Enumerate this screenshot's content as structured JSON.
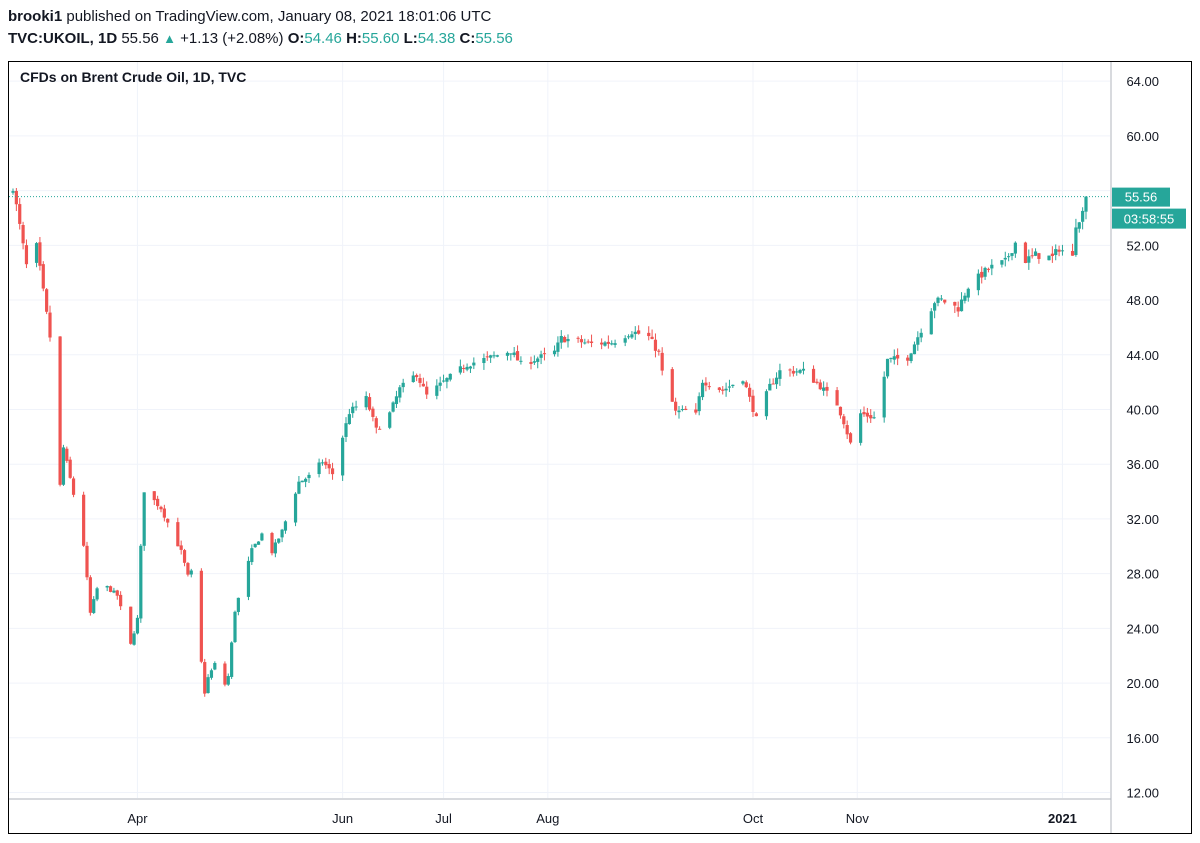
{
  "header": {
    "publisher": "brooki1",
    "published_text": "published on TradingView.com, January 08, 2021 18:01:06 UTC",
    "symbol": "TVC:UKOIL, 1D",
    "last": "55.56",
    "change": "+1.13 (+2.08%)",
    "o_label": "O:",
    "o_value": "54.46",
    "h_label": "H:",
    "h_value": "55.60",
    "l_label": "L:",
    "l_value": "54.38",
    "c_label": "C:",
    "c_value": "55.56"
  },
  "chart_data": {
    "type": "candlestick",
    "title": "CFDs on Brent Crude Oil, 1D, TVC",
    "xlabel": "",
    "ylabel": "",
    "ylim": [
      11.6,
      65.4
    ],
    "y_ticks": [
      64,
      60,
      56,
      52,
      48,
      44,
      40,
      36,
      32,
      28,
      24,
      20,
      16,
      12
    ],
    "y_tick_labels": [
      "64.00",
      "60.00",
      "",
      "52.00",
      "48.00",
      "44.00",
      "40.00",
      "36.00",
      "32.00",
      "28.00",
      "24.00",
      "20.00",
      "16.00",
      "12.00"
    ],
    "x_start": "2020-02-24",
    "x_end": "2021-01-08",
    "x_ticks": [
      {
        "date": "2020-04-01",
        "label": "Apr",
        "bold": false
      },
      {
        "date": "2020-06-01",
        "label": "Jun",
        "bold": false
      },
      {
        "date": "2020-07-01",
        "label": "Jul",
        "bold": false
      },
      {
        "date": "2020-08-01",
        "label": "Aug",
        "bold": false
      },
      {
        "date": "2020-10-01",
        "label": "Oct",
        "bold": false
      },
      {
        "date": "2020-11-01",
        "label": "Nov",
        "bold": false
      },
      {
        "date": "2021-01-01",
        "label": "2021",
        "bold": true
      }
    ],
    "last_price": 55.56,
    "last_price_label": "55.56",
    "countdown_label": "03:58:55",
    "grid": true,
    "up_color": "#26a69a",
    "down_color": "#ef5350",
    "close_anchors": [
      [
        "2020-02-24",
        56.3
      ],
      [
        "2020-02-26",
        53.4
      ],
      [
        "2020-02-28",
        50.5
      ],
      [
        "2020-03-02",
        51.9
      ],
      [
        "2020-03-06",
        45.3
      ],
      [
        "2020-03-09",
        34.4
      ],
      [
        "2020-03-10",
        37.2
      ],
      [
        "2020-03-13",
        33.8
      ],
      [
        "2020-03-16",
        30.1
      ],
      [
        "2020-03-18",
        25.1
      ],
      [
        "2020-03-20",
        26.9
      ],
      [
        "2020-03-23",
        27.0
      ],
      [
        "2020-03-26",
        26.4
      ],
      [
        "2020-03-30",
        22.8
      ],
      [
        "2020-04-01",
        24.7
      ],
      [
        "2020-04-02",
        29.9
      ],
      [
        "2020-04-03",
        34.1
      ],
      [
        "2020-04-08",
        32.8
      ],
      [
        "2020-04-14",
        29.6
      ],
      [
        "2020-04-16",
        27.8
      ],
      [
        "2020-04-17",
        28.1
      ],
      [
        "2020-04-21",
        19.3
      ],
      [
        "2020-04-22",
        20.4
      ],
      [
        "2020-04-24",
        21.4
      ],
      [
        "2020-04-27",
        19.9
      ],
      [
        "2020-04-28",
        20.5
      ],
      [
        "2020-04-30",
        25.3
      ],
      [
        "2020-05-05",
        29.7
      ],
      [
        "2020-05-08",
        30.9
      ],
      [
        "2020-05-11",
        29.6
      ],
      [
        "2020-05-14",
        31.1
      ],
      [
        "2020-05-19",
        34.7
      ],
      [
        "2020-05-22",
        35.1
      ],
      [
        "2020-05-26",
        36.2
      ],
      [
        "2020-05-29",
        35.3
      ],
      [
        "2020-06-03",
        39.8
      ],
      [
        "2020-06-08",
        40.8
      ],
      [
        "2020-06-11",
        38.5
      ],
      [
        "2020-06-15",
        39.7
      ],
      [
        "2020-06-18",
        41.5
      ],
      [
        "2020-06-23",
        42.6
      ],
      [
        "2020-06-26",
        41.0
      ],
      [
        "2020-07-01",
        42.0
      ],
      [
        "2020-07-08",
        43.3
      ],
      [
        "2020-07-15",
        43.8
      ],
      [
        "2020-07-21",
        44.3
      ],
      [
        "2020-07-24",
        43.3
      ],
      [
        "2020-08-03",
        44.2
      ],
      [
        "2020-08-05",
        45.2
      ],
      [
        "2020-08-14",
        44.8
      ],
      [
        "2020-08-20",
        44.9
      ],
      [
        "2020-08-26",
        45.7
      ],
      [
        "2020-08-31",
        45.3
      ],
      [
        "2020-09-03",
        44.1
      ],
      [
        "2020-09-04",
        42.7
      ],
      [
        "2020-09-08",
        39.8
      ],
      [
        "2020-09-11",
        39.9
      ],
      [
        "2020-09-14",
        39.6
      ],
      [
        "2020-09-16",
        42.1
      ],
      [
        "2020-09-22",
        41.4
      ],
      [
        "2020-09-28",
        42.3
      ],
      [
        "2020-10-02",
        39.3
      ],
      [
        "2020-10-06",
        41.7
      ],
      [
        "2020-10-09",
        42.8
      ],
      [
        "2020-10-16",
        42.8
      ],
      [
        "2020-10-21",
        41.7
      ],
      [
        "2020-10-26",
        40.4
      ],
      [
        "2020-10-28",
        39.1
      ],
      [
        "2020-10-30",
        37.5
      ],
      [
        "2020-11-02",
        39.7
      ],
      [
        "2020-11-06",
        39.4
      ],
      [
        "2020-11-09",
        42.4
      ],
      [
        "2020-11-10",
        43.6
      ],
      [
        "2020-11-16",
        43.8
      ],
      [
        "2020-11-24",
        47.9
      ],
      [
        "2020-11-26",
        48.0
      ],
      [
        "2020-12-01",
        47.4
      ],
      [
        "2020-12-04",
        49.0
      ],
      [
        "2020-12-10",
        50.3
      ],
      [
        "2020-12-15",
        50.8
      ],
      [
        "2020-12-18",
        52.2
      ],
      [
        "2020-12-21",
        50.9
      ],
      [
        "2020-12-24",
        51.3
      ],
      [
        "2020-12-29",
        51.1
      ],
      [
        "2020-12-31",
        51.8
      ],
      [
        "2021-01-04",
        51.1
      ],
      [
        "2021-01-05",
        53.6
      ],
      [
        "2021-01-07",
        54.4
      ],
      [
        "2021-01-08",
        55.56
      ]
    ]
  }
}
